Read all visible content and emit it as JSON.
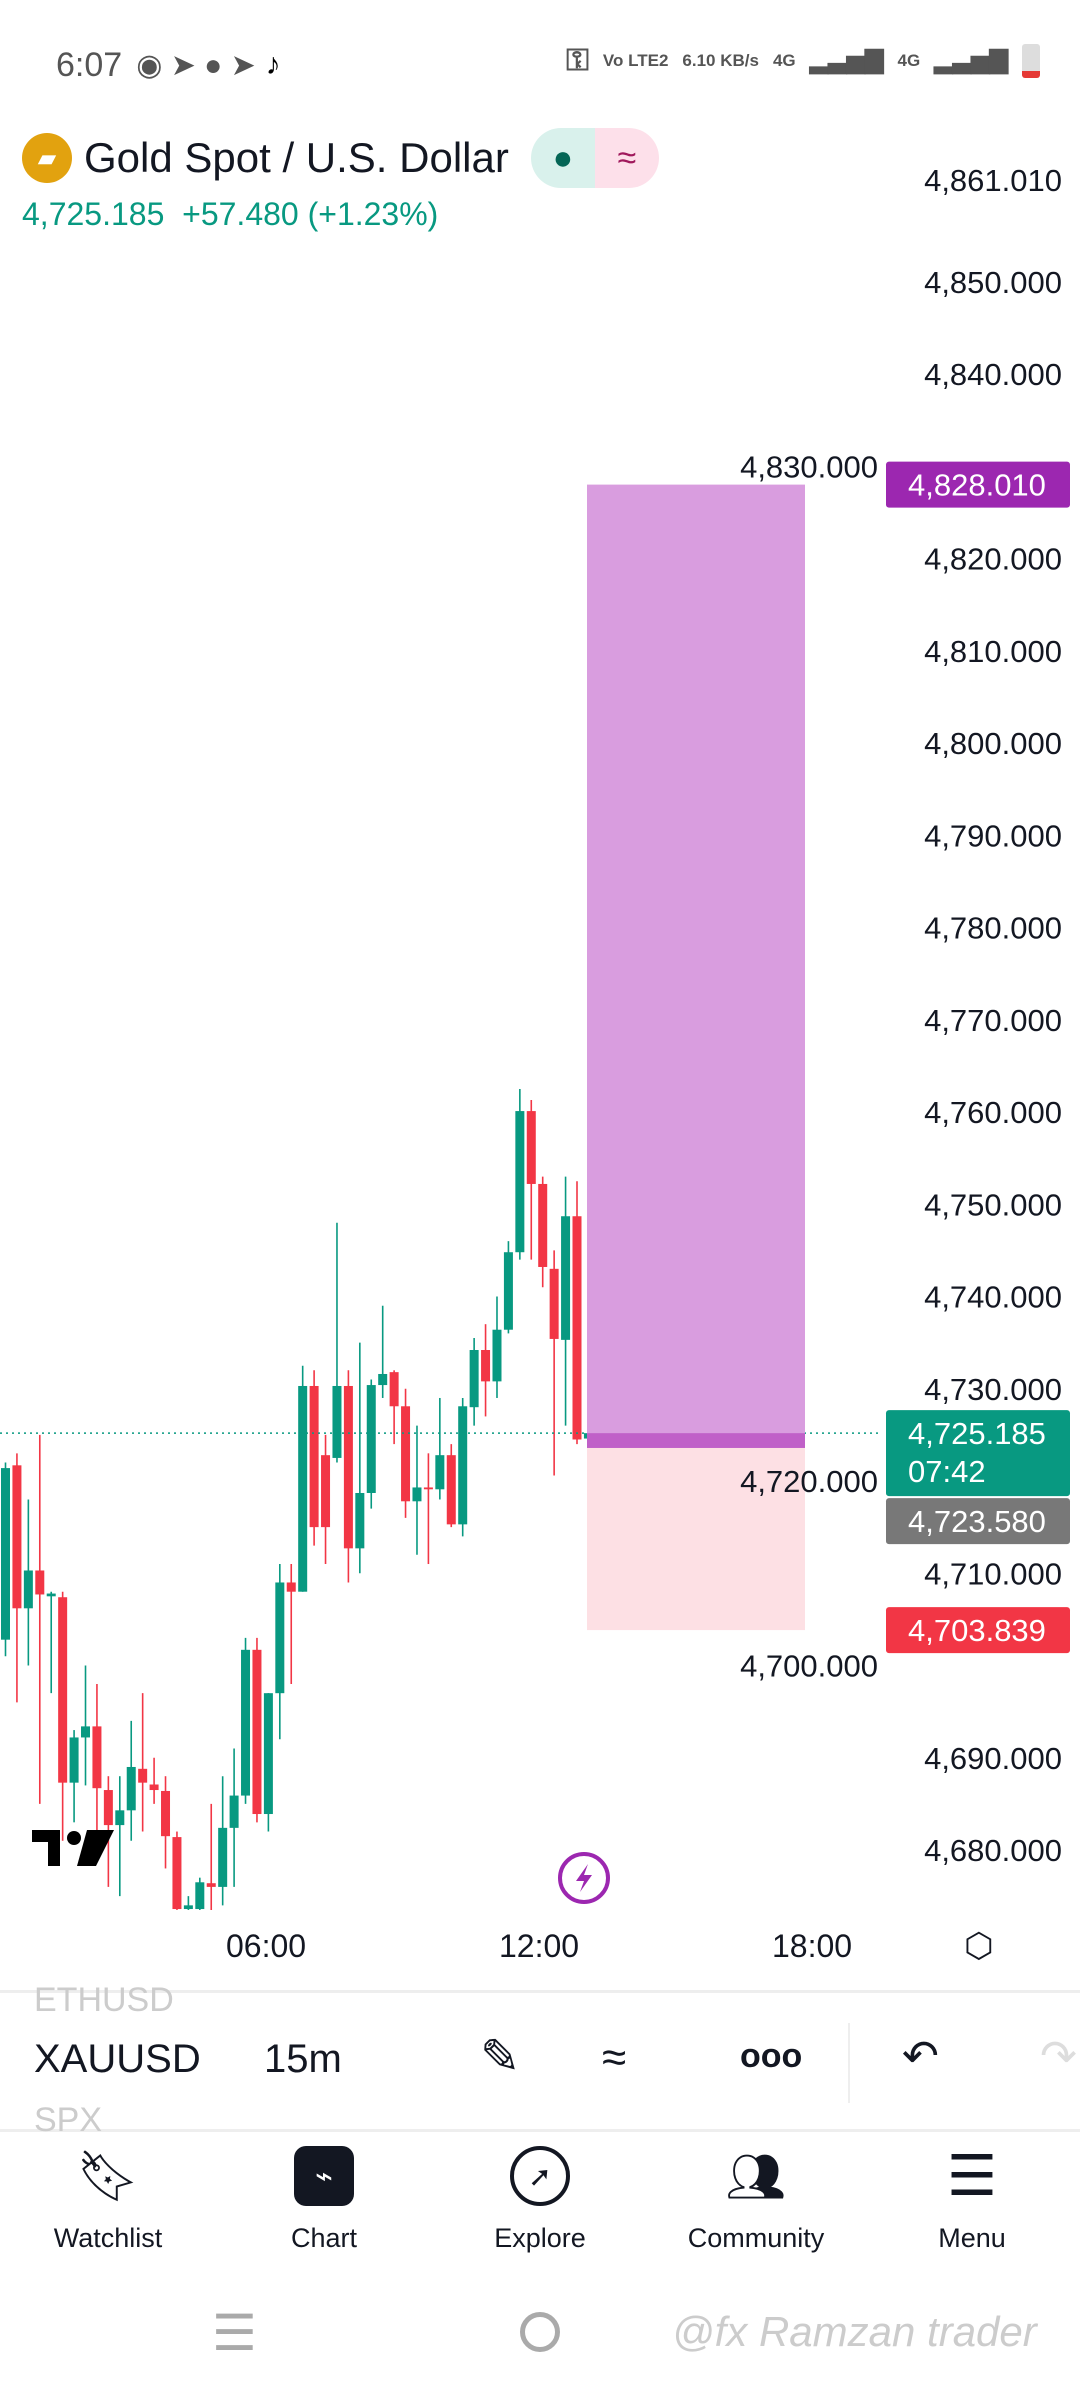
{
  "status": {
    "time": "6:07",
    "carrier": "Vo LTE2",
    "speed": "6.10 KB/s",
    "net1": "4G",
    "net2": "4G"
  },
  "header": {
    "title": "Gold Spot / U.S. Dollar",
    "price": "4,725.185",
    "change": "+57.480 (+1.23%)"
  },
  "colors": {
    "up": "#089981",
    "down": "#f23645",
    "target": "#9c27b0",
    "target_fill": "#d99ddf",
    "stop_fill": "#fde0e4"
  },
  "chart_data": {
    "type": "candlestick",
    "ylim": [
      4673.5,
      4861.01
    ],
    "yticks": [
      "4,861.010",
      "4,850.000",
      "4,840.000",
      "4,830.000",
      "4,820.000",
      "4,810.000",
      "4,800.000",
      "4,790.000",
      "4,780.000",
      "4,770.000",
      "4,760.000",
      "4,750.000",
      "4,740.000",
      "4,730.000",
      "4,720.000",
      "4,710.000",
      "4,700.000",
      "4,690.000",
      "4,680.000"
    ],
    "xticks": [
      "06:00",
      "12:00",
      "18:00"
    ],
    "candles_ohlc": [
      [
        4702.8,
        4722,
        4701,
        4721.4
      ],
      [
        4721.7,
        4723,
        4696,
        4706.2
      ],
      [
        4706.2,
        4718,
        4700,
        4710.3
      ],
      [
        4710.3,
        4725,
        4685,
        4707.7
      ],
      [
        4707.5,
        4708,
        4697,
        4707.8
      ],
      [
        4707.4,
        4708,
        4681,
        4687.3
      ],
      [
        4687.3,
        4693,
        4683,
        4692.2
      ],
      [
        4692.2,
        4700,
        4687,
        4693.4
      ],
      [
        4693.4,
        4698,
        4681,
        4686.7
      ],
      [
        4686.5,
        4688,
        4676,
        4682.7
      ],
      [
        4682.7,
        4688,
        4675,
        4684.3
      ],
      [
        4684.3,
        4694,
        4681,
        4689
      ],
      [
        4688.8,
        4697,
        4682,
        4687.3
      ],
      [
        4687.1,
        4690,
        4685,
        4686.5
      ],
      [
        4686.4,
        4688,
        4678,
        4681.5
      ],
      [
        4681.4,
        4682,
        4673.5,
        4673.6
      ],
      [
        4673.6,
        4675,
        4673.5,
        4674
      ],
      [
        4673.6,
        4677,
        4673.5,
        4676.5
      ],
      [
        4676.4,
        4685,
        4673.5,
        4676
      ],
      [
        4676,
        4688,
        4674,
        4682.4
      ],
      [
        4682.4,
        4691,
        4676,
        4685.9
      ],
      [
        4685.9,
        4703,
        4685,
        4701.7
      ],
      [
        4701.7,
        4703,
        4683,
        4683.9
      ],
      [
        4683.9,
        4697,
        4682,
        4697
      ],
      [
        4697,
        4711,
        4692,
        4709
      ],
      [
        4709,
        4711,
        4698,
        4708
      ],
      [
        4708,
        4732.5,
        4708,
        4730.3
      ],
      [
        4730.3,
        4732,
        4713,
        4715
      ],
      [
        4722.8,
        4725,
        4711,
        4715
      ],
      [
        4722.5,
        4748,
        4722,
        4730.3
      ],
      [
        4730.3,
        4732,
        4709,
        4712.7
      ],
      [
        4712.7,
        4735,
        4710,
        4718.7
      ],
      [
        4718.7,
        4731,
        4717,
        4730.4
      ],
      [
        4730.4,
        4739,
        4729,
        4731.6
      ],
      [
        4731.8,
        4732,
        4724,
        4728.1
      ],
      [
        4728.1,
        4730,
        4716,
        4717.8
      ],
      [
        4717.8,
        4726,
        4712,
        4719.3
      ],
      [
        4719.3,
        4723,
        4711,
        4719.1
      ],
      [
        4719.1,
        4729,
        4718,
        4722.8
      ],
      [
        4722.8,
        4724,
        4715,
        4715.3
      ],
      [
        4715.3,
        4729,
        4714,
        4728.1
      ],
      [
        4728,
        4735.5,
        4726,
        4734.2
      ],
      [
        4734.2,
        4737,
        4727,
        4730.8
      ],
      [
        4730.8,
        4740,
        4729,
        4736.4
      ],
      [
        4736.4,
        4746,
        4736,
        4744.8
      ],
      [
        4744.8,
        4762.5,
        4744,
        4760.1
      ],
      [
        4760.1,
        4761.3,
        4744,
        4752.2
      ],
      [
        4752.2,
        4753,
        4741,
        4743.2
      ],
      [
        4743,
        4745,
        4720.6,
        4735.4
      ],
      [
        4735.3,
        4753,
        4726,
        4748.7
      ],
      [
        4748.7,
        4752.5,
        4724,
        4724.5
      ],
      [
        4724.6,
        4726.6,
        4716,
        4725.185
      ]
    ],
    "position": {
      "target": 4828.01,
      "entry": 4723.58,
      "stop": 4703.839,
      "current": 4725.185
    },
    "labels": {
      "target": "4,828.010",
      "current": "4,725.185",
      "countdown": "07:42",
      "entry": "4,723.580",
      "stop": "4,703.839"
    }
  },
  "toolbar": {
    "prev_symbol": "ETHUSD",
    "symbol": "XAUUSD",
    "interval": "15m",
    "next_symbol": "SPX"
  },
  "nav": [
    {
      "label": "Watchlist"
    },
    {
      "label": "Chart"
    },
    {
      "label": "Explore"
    },
    {
      "label": "Community"
    },
    {
      "label": "Menu"
    }
  ],
  "watermark": "@fx Ramzan trader"
}
